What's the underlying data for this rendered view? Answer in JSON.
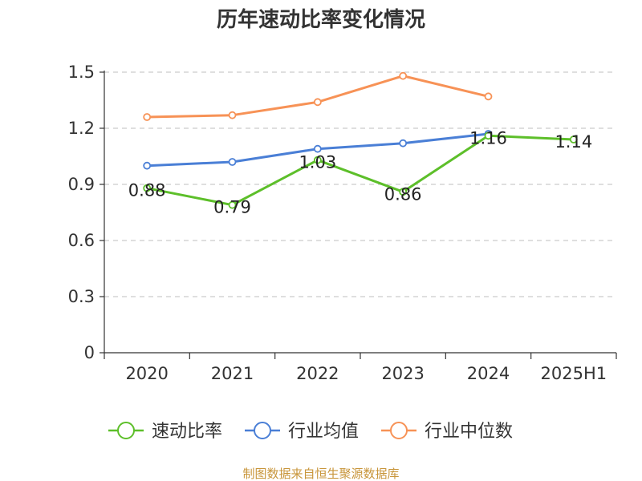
{
  "chart_data": {
    "type": "line",
    "title": "历年速动比率变化情况",
    "categories": [
      "2020",
      "2021",
      "2022",
      "2023",
      "2024",
      "2025H1"
    ],
    "ylim": [
      0,
      1.5
    ],
    "yticks": [
      "0",
      "0.3",
      "0.6",
      "0.9",
      "1.2",
      "1.5"
    ],
    "ytick_values": [
      0,
      0.3,
      0.6,
      0.9,
      1.2,
      1.5
    ],
    "grid": true,
    "legend_position": "bottom",
    "series": [
      {
        "name": "速动比率",
        "color": "#5dbf2a",
        "values": [
          0.88,
          0.79,
          1.03,
          0.86,
          1.16,
          1.14
        ],
        "labels": [
          "0.88",
          "0.79",
          "1.03",
          "0.86",
          "1.16",
          "1.14"
        ]
      },
      {
        "name": "行业均值",
        "color": "#4a7fd6",
        "values": [
          1.0,
          1.02,
          1.09,
          1.12,
          1.17,
          null
        ]
      },
      {
        "name": "行业中位数",
        "color": "#f79256",
        "values": [
          1.26,
          1.27,
          1.34,
          1.48,
          1.37,
          null
        ]
      }
    ],
    "source": "制图数据来自恒生聚源数据库"
  }
}
